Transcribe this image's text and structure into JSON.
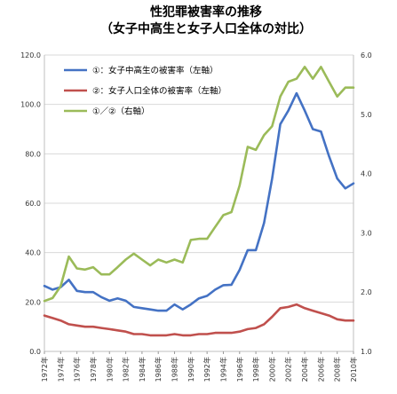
{
  "chart_data": {
    "type": "line",
    "title": "性犯罪被害率の推移",
    "subtitle": "（女子中高生と女子人口全体の対比）",
    "x": [
      "1972年",
      "1973年",
      "1974年",
      "1975年",
      "1976年",
      "1977年",
      "1978年",
      "1979年",
      "1980年",
      "1981年",
      "1982年",
      "1983年",
      "1984年",
      "1985年",
      "1986年",
      "1987年",
      "1988年",
      "1989年",
      "1990年",
      "1991年",
      "1992年",
      "1993年",
      "1994年",
      "1995年",
      "1996年",
      "1997年",
      "1998年",
      "1999年",
      "2000年",
      "2001年",
      "2002年",
      "2003年",
      "2004年",
      "2005年",
      "2006年",
      "2007年",
      "2008年",
      "2009年",
      "2010年"
    ],
    "x_tick_labels": [
      "1972年",
      "1974年",
      "1976年",
      "1978年",
      "1980年",
      "1982年",
      "1984年",
      "1986年",
      "1988年",
      "1990年",
      "1992年",
      "1994年",
      "1996年",
      "1998年",
      "2000年",
      "2002年",
      "2004年",
      "2006年",
      "2008年",
      "2010年"
    ],
    "y_left": {
      "ylim": [
        0,
        120
      ],
      "ticks": [
        "0.0",
        "20.0",
        "40.0",
        "60.0",
        "80.0",
        "100.0",
        "120.0"
      ]
    },
    "y_right": {
      "ylim": [
        1.0,
        6.0
      ],
      "ticks": [
        "1.0",
        "2.0",
        "3.0",
        "4.0",
        "5.0",
        "6.0"
      ]
    },
    "grid": true,
    "legend_position": "top-left",
    "series": [
      {
        "name": "①：女子中高生の被害率（左軸）",
        "axis": "left",
        "color": "#4472c4",
        "values": [
          26.5,
          25.0,
          26.0,
          29.0,
          24.5,
          24.0,
          24.0,
          22.0,
          20.5,
          21.5,
          20.5,
          18.0,
          17.5,
          17.0,
          16.5,
          16.5,
          19.0,
          17.0,
          19.0,
          21.5,
          22.5,
          25.0,
          26.8,
          27.0,
          33.0,
          41.0,
          41.0,
          52.0,
          70.0,
          92.0,
          97.5,
          104.5,
          97.5,
          90.0,
          89.0,
          79.0,
          70.0,
          66.0,
          68.0
        ]
      },
      {
        "name": "②：女子人口全体の被害率（左軸）",
        "axis": "left",
        "color": "#c0504d",
        "values": [
          14.5,
          13.5,
          12.5,
          11.0,
          10.5,
          10.0,
          10.0,
          9.5,
          9.0,
          8.5,
          8.0,
          7.0,
          7.0,
          6.5,
          6.5,
          6.5,
          7.0,
          6.5,
          6.5,
          7.0,
          7.0,
          7.5,
          7.5,
          7.5,
          8.0,
          9.0,
          9.5,
          11.0,
          14.0,
          17.5,
          18.0,
          19.0,
          17.5,
          16.5,
          15.5,
          14.5,
          13.0,
          12.5,
          12.5
        ]
      },
      {
        "name": "①／②（右軸）",
        "axis": "right",
        "color": "#9bbb59",
        "values": [
          1.85,
          1.9,
          2.1,
          2.6,
          2.4,
          2.38,
          2.42,
          2.3,
          2.3,
          2.42,
          2.55,
          2.65,
          2.55,
          2.45,
          2.55,
          2.5,
          2.55,
          2.5,
          2.88,
          2.9,
          2.9,
          3.1,
          3.3,
          3.35,
          3.8,
          4.45,
          4.4,
          4.65,
          4.8,
          5.3,
          5.55,
          5.6,
          5.8,
          5.6,
          5.8,
          5.55,
          5.3,
          5.45,
          5.45
        ]
      }
    ]
  }
}
